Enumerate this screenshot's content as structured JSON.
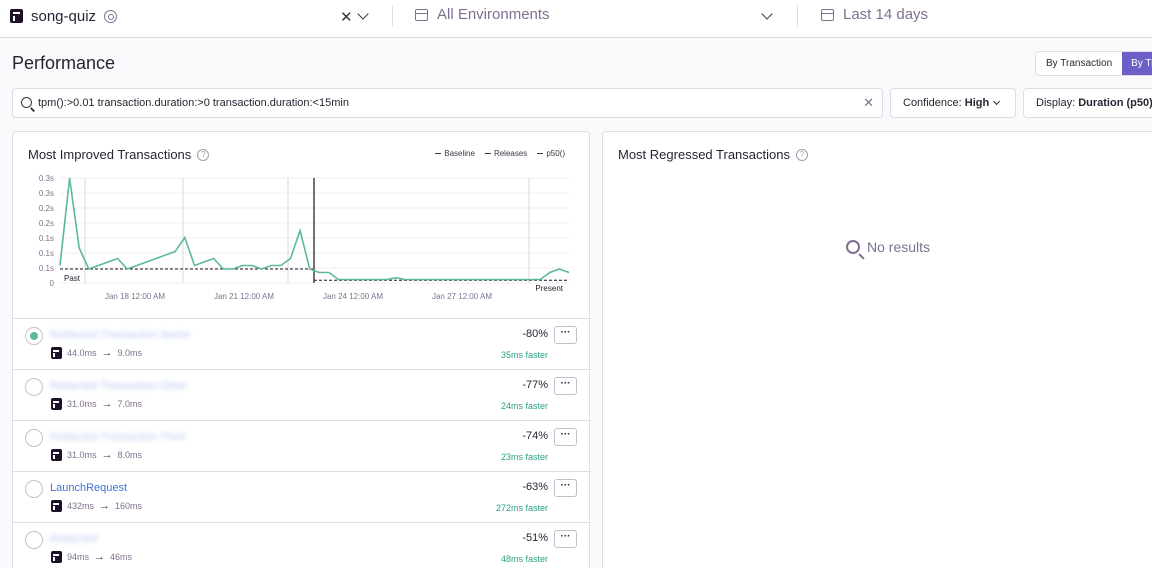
{
  "topbar": {
    "project": "song-quiz",
    "environment": "All Environments",
    "date_range": "Last 14 days"
  },
  "header": {
    "title": "Performance",
    "view_options": [
      "By Transaction",
      "By Trend"
    ]
  },
  "search": {
    "query": "tpm():>0.01 transaction.duration:>0 transaction.duration:<15min"
  },
  "filters": {
    "confidence_label": "Confidence:",
    "confidence_value": "High",
    "display_label": "Display:",
    "display_value": "Duration (p50)"
  },
  "improved": {
    "title": "Most Improved Transactions",
    "legend": [
      "Baseline",
      "Releases",
      "p50()"
    ],
    "rows": [
      {
        "name": "Redacted.Transaction.Name",
        "from": "44.0ms",
        "to": "9.0ms",
        "change": "-80%",
        "delta": "35ms faster",
        "selected": true,
        "blurred": true
      },
      {
        "name": "Redacted.Transaction.Other",
        "from": "31.0ms",
        "to": "7.0ms",
        "change": "-77%",
        "delta": "24ms faster",
        "selected": false,
        "blurred": true
      },
      {
        "name": "Redacted.Transaction.Third",
        "from": "31.0ms",
        "to": "8.0ms",
        "change": "-74%",
        "delta": "23ms faster",
        "selected": false,
        "blurred": true
      },
      {
        "name": "LaunchRequest",
        "from": "432ms",
        "to": "160ms",
        "change": "-63%",
        "delta": "272ms faster",
        "selected": false,
        "blurred": false
      },
      {
        "name": "Redacted",
        "from": "94ms",
        "to": "46ms",
        "change": "-51%",
        "delta": "48ms faster",
        "selected": false,
        "blurred": true
      }
    ],
    "more_label": "···"
  },
  "regressed": {
    "title": "Most Regressed Transactions",
    "empty_text": "No results"
  },
  "chart_data": {
    "type": "line",
    "y_tick_labels": [
      "0",
      "0.1s",
      "0.1s",
      "0.1s",
      "0.2s",
      "0.2s",
      "0.3s",
      "0.3s"
    ],
    "x_tick_labels": [
      "Jan 18 12:00 AM",
      "Jan 21 12:00 AM",
      "Jan 24 12:00 AM",
      "Jan 27 12:00 AM"
    ],
    "period_labels": [
      "Past",
      "Present"
    ],
    "ylim": [
      0,
      0.3
    ],
    "series": [
      {
        "name": "p50()",
        "color": "#5cb99a",
        "values": [
          0.05,
          0.3,
          0.1,
          0.04,
          0.05,
          0.06,
          0.07,
          0.04,
          0.05,
          0.06,
          0.07,
          0.08,
          0.09,
          0.13,
          0.05,
          0.06,
          0.07,
          0.04,
          0.04,
          0.05,
          0.05,
          0.04,
          0.05,
          0.05,
          0.07,
          0.15,
          0.04,
          0.03,
          0.03,
          0.01,
          0.01,
          0.01,
          0.01,
          0.01,
          0.01,
          0.015,
          0.01,
          0.01,
          0.01,
          0.01,
          0.01,
          0.01,
          0.01,
          0.01,
          0.01,
          0.01,
          0.01,
          0.01,
          0.01,
          0.01,
          0.01,
          0.03,
          0.04,
          0.03
        ]
      }
    ],
    "baseline_past": 0.04,
    "baseline_present": 0.008
  }
}
